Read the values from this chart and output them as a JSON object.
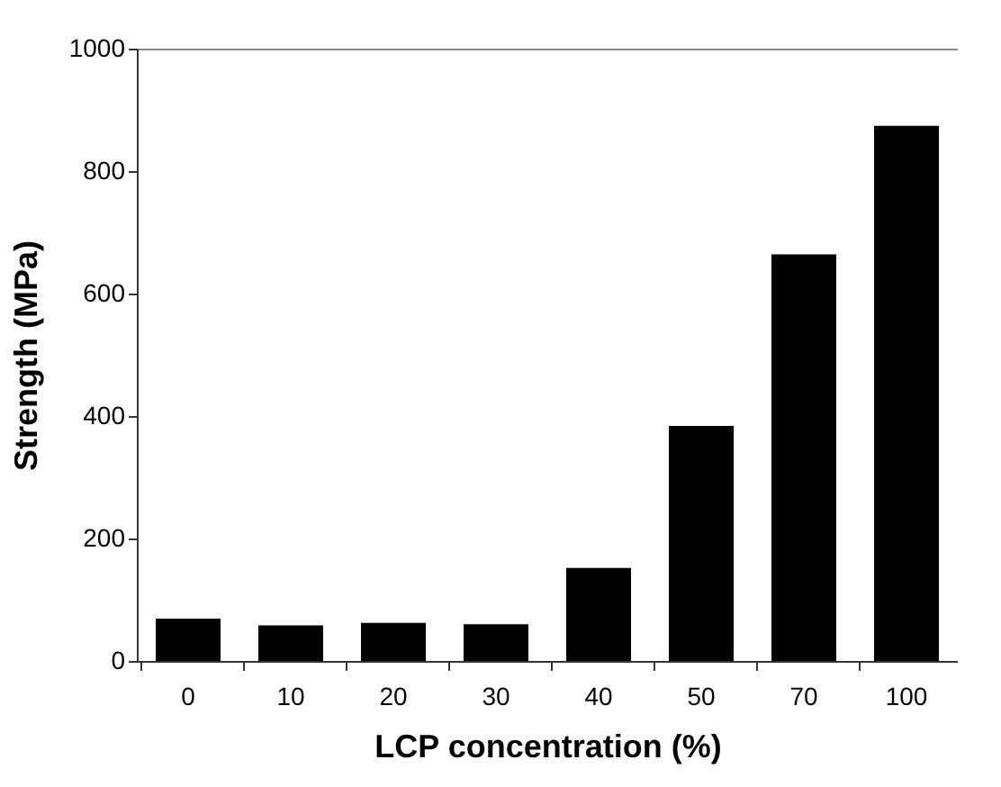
{
  "chart_data": {
    "type": "bar",
    "xlabel": "LCP concentration (%)",
    "ylabel": "Strength (MPa)",
    "categories": [
      "0",
      "10",
      "20",
      "30",
      "40",
      "50",
      "70",
      "100"
    ],
    "values": [
      69,
      58,
      62,
      60,
      152,
      384,
      664,
      874
    ],
    "color": "#000000",
    "ylim": [
      0,
      1000
    ],
    "yticks": [
      0,
      200,
      400,
      600,
      800,
      1000
    ],
    "grid": false
  }
}
